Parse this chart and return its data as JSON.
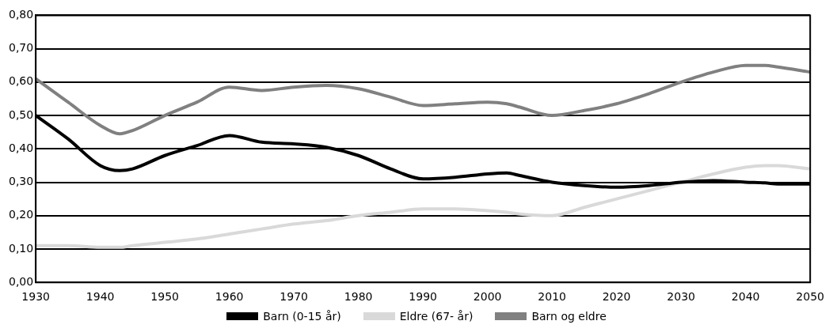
{
  "chart_data": {
    "type": "line",
    "x": [
      1930,
      1935,
      1940,
      1943,
      1945,
      1950,
      1955,
      1960,
      1965,
      1970,
      1975,
      1980,
      1985,
      1990,
      1995,
      2000,
      2003,
      2005,
      2010,
      2015,
      2020,
      2025,
      2030,
      2035,
      2040,
      2043,
      2045,
      2050
    ],
    "series": [
      {
        "name": "Barn (0-15 år)",
        "color": "#000000",
        "values": [
          0.5,
          0.43,
          0.35,
          0.335,
          0.34,
          0.38,
          0.41,
          0.44,
          0.42,
          0.415,
          0.405,
          0.38,
          0.34,
          0.31,
          0.315,
          0.325,
          0.328,
          0.32,
          0.3,
          0.29,
          0.285,
          0.29,
          0.3,
          0.305,
          0.3,
          0.298,
          0.295,
          0.295
        ]
      },
      {
        "name": "Eldre (67- år)",
        "color": "#d9d9d9",
        "values": [
          0.11,
          0.11,
          0.105,
          0.105,
          0.11,
          0.12,
          0.13,
          0.145,
          0.16,
          0.175,
          0.185,
          0.2,
          0.21,
          0.22,
          0.22,
          0.215,
          0.21,
          0.205,
          0.2,
          0.225,
          0.25,
          0.275,
          0.3,
          0.325,
          0.345,
          0.35,
          0.35,
          0.34
        ]
      },
      {
        "name": "Barn og eldre",
        "color": "#808080",
        "values": [
          0.61,
          0.54,
          0.47,
          0.445,
          0.455,
          0.5,
          0.54,
          0.585,
          0.575,
          0.585,
          0.59,
          0.58,
          0.555,
          0.53,
          0.535,
          0.54,
          0.535,
          0.525,
          0.5,
          0.515,
          0.535,
          0.565,
          0.6,
          0.63,
          0.65,
          0.65,
          0.645,
          0.63
        ]
      }
    ],
    "xlim": [
      1930,
      2050
    ],
    "xticks": [
      1930,
      1940,
      1950,
      1960,
      1970,
      1980,
      1990,
      2000,
      2010,
      2020,
      2030,
      2040,
      2050
    ],
    "ylim": [
      0,
      0.8
    ],
    "yticks": [
      {
        "value": 0,
        "label": "0,00"
      },
      {
        "value": 0.1,
        "label": "0,10"
      },
      {
        "value": 0.2,
        "label": "0,20"
      },
      {
        "value": 0.3,
        "label": "0,30"
      },
      {
        "value": 0.4,
        "label": "0,40"
      },
      {
        "value": 0.5,
        "label": "0,50"
      },
      {
        "value": 0.6,
        "label": "0,60"
      },
      {
        "value": 0.7,
        "label": "0,70"
      },
      {
        "value": 0.8,
        "label": "0,80"
      }
    ],
    "grid": "y",
    "legend": "bottom",
    "marker": "none",
    "line_style": "solid"
  }
}
